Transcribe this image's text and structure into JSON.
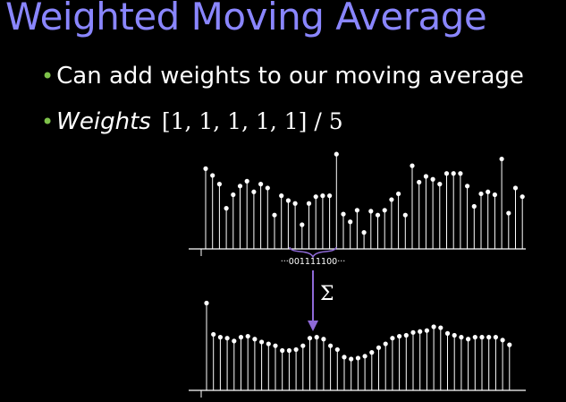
{
  "title": "Weighted Moving Average",
  "colors": {
    "background": "#000000",
    "title": "#8a86ff",
    "bullet_dot": "#7ec24a",
    "text": "#ffffff",
    "sum_arrow": "#8f6ad8",
    "kernel_brace": "#8f6ad8"
  },
  "bullets": [
    {
      "text": "Can add weights to our moving average"
    },
    {
      "label": "Weights",
      "value": "[1, 1, 1, 1, 1]  / 5"
    }
  ],
  "diagram": {
    "kernel_label": "···001111100···",
    "operator_symbol": "Σ",
    "input_signal": [
      0.83,
      0.76,
      0.67,
      0.42,
      0.56,
      0.65,
      0.7,
      0.59,
      0.67,
      0.63,
      0.35,
      0.55,
      0.5,
      0.47,
      0.25,
      0.47,
      0.54,
      0.55,
      0.55,
      0.98,
      0.36,
      0.28,
      0.4,
      0.17,
      0.39,
      0.35,
      0.4,
      0.51,
      0.57,
      0.35,
      0.86,
      0.69,
      0.75,
      0.72,
      0.67,
      0.78,
      0.78,
      0.78,
      0.65,
      0.44,
      0.57,
      0.59,
      0.56,
      0.93,
      0.37,
      0.63,
      0.54
    ],
    "smoothed_signal": [
      0.92,
      0.59,
      0.56,
      0.55,
      0.52,
      0.56,
      0.57,
      0.54,
      0.51,
      0.49,
      0.47,
      0.42,
      0.42,
      0.43,
      0.47,
      0.55,
      0.56,
      0.54,
      0.47,
      0.43,
      0.35,
      0.33,
      0.34,
      0.36,
      0.4,
      0.45,
      0.49,
      0.55,
      0.57,
      0.58,
      0.61,
      0.62,
      0.63,
      0.67,
      0.66,
      0.6,
      0.58,
      0.56,
      0.54,
      0.56,
      0.56,
      0.56,
      0.56,
      0.53,
      0.48
    ]
  }
}
